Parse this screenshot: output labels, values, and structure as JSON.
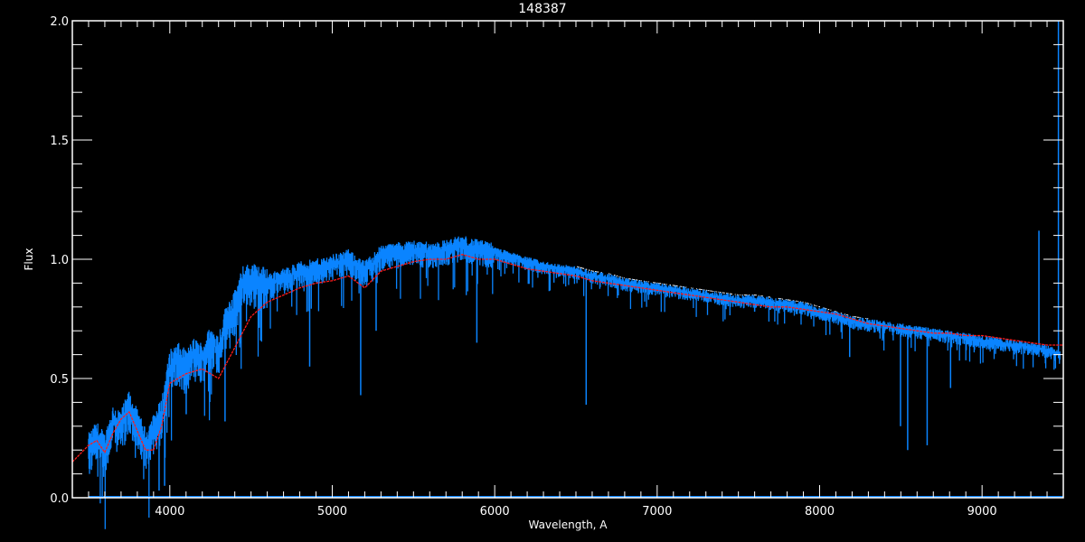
{
  "chart_data": {
    "type": "line",
    "title": "148387",
    "xlabel": "Wavelength, A",
    "ylabel": "Flux",
    "xlim": [
      3400,
      9500
    ],
    "ylim": [
      0.0,
      2.0
    ],
    "xticks": [
      4000,
      5000,
      6000,
      7000,
      8000,
      9000
    ],
    "xtick_labels": [
      "4000",
      "5000",
      "6000",
      "7000",
      "8000",
      "9000"
    ],
    "yticks": [
      0.0,
      0.5,
      1.0,
      1.5,
      2.0
    ],
    "ytick_labels": [
      "0.0",
      "0.5",
      "1.0",
      "1.5",
      "2.0"
    ],
    "grid": false,
    "background": "#000000",
    "series": [
      {
        "role": "observed",
        "color": "#0a84ff",
        "x": [
          3500,
          3550,
          3600,
          3650,
          3700,
          3750,
          3800,
          3850,
          3900,
          3950,
          4000,
          4050,
          4100,
          4150,
          4200,
          4250,
          4300,
          4350,
          4400,
          4450,
          4500,
          4550,
          4600,
          4700,
          4800,
          4900,
          5000,
          5100,
          5200,
          5300,
          5400,
          5500,
          5600,
          5700,
          5800,
          5900,
          6000,
          6100,
          6200,
          6300,
          6400,
          6500,
          6600,
          6700,
          6800,
          6900,
          7000,
          7100,
          7200,
          7300,
          7400,
          7500,
          7600,
          7700,
          7800,
          7900,
          8000,
          8100,
          8200,
          8300,
          8400,
          8500,
          8600,
          8700,
          8800,
          8900,
          9000,
          9100,
          9200,
          9300,
          9400,
          9480
        ],
        "y": [
          0.2,
          0.25,
          0.2,
          0.32,
          0.3,
          0.38,
          0.3,
          0.22,
          0.28,
          0.35,
          0.55,
          0.58,
          0.55,
          0.6,
          0.58,
          0.65,
          0.62,
          0.75,
          0.8,
          0.9,
          0.92,
          0.9,
          0.9,
          0.92,
          0.95,
          0.96,
          0.98,
          1.0,
          0.95,
          1.02,
          1.03,
          1.04,
          1.03,
          1.04,
          1.06,
          1.04,
          1.03,
          1.01,
          0.99,
          0.97,
          0.96,
          0.95,
          0.93,
          0.92,
          0.9,
          0.89,
          0.88,
          0.87,
          0.86,
          0.85,
          0.84,
          0.83,
          0.83,
          0.82,
          0.81,
          0.8,
          0.78,
          0.76,
          0.74,
          0.73,
          0.72,
          0.71,
          0.7,
          0.69,
          0.68,
          0.67,
          0.66,
          0.65,
          0.64,
          0.63,
          0.62,
          0.6
        ]
      },
      {
        "role": "model",
        "color": "#ff1a1a",
        "x": [
          3400,
          3500,
          3550,
          3600,
          3650,
          3700,
          3750,
          3800,
          3850,
          3900,
          3950,
          4000,
          4100,
          4200,
          4300,
          4400,
          4500,
          4600,
          4700,
          4800,
          4900,
          5000,
          5100,
          5200,
          5300,
          5400,
          5500,
          5600,
          5700,
          5800,
          5900,
          6000,
          6100,
          6200,
          6300,
          6400,
          6500,
          6600,
          6700,
          6800,
          6900,
          7000,
          7100,
          7200,
          7300,
          7400,
          7500,
          7600,
          7700,
          7800,
          7900,
          8000,
          8100,
          8200,
          8300,
          8400,
          8500,
          8600,
          8700,
          8800,
          8900,
          9000,
          9100,
          9200,
          9300,
          9400,
          9500
        ],
        "y": [
          0.15,
          0.22,
          0.24,
          0.19,
          0.27,
          0.33,
          0.36,
          0.28,
          0.2,
          0.2,
          0.3,
          0.48,
          0.52,
          0.54,
          0.5,
          0.63,
          0.76,
          0.82,
          0.85,
          0.88,
          0.9,
          0.91,
          0.93,
          0.88,
          0.95,
          0.97,
          0.99,
          1.0,
          1.0,
          1.02,
          1.0,
          1.0,
          0.98,
          0.96,
          0.95,
          0.94,
          0.93,
          0.91,
          0.9,
          0.89,
          0.88,
          0.87,
          0.86,
          0.85,
          0.84,
          0.83,
          0.82,
          0.81,
          0.8,
          0.8,
          0.79,
          0.78,
          0.77,
          0.75,
          0.73,
          0.72,
          0.71,
          0.7,
          0.69,
          0.69,
          0.68,
          0.68,
          0.67,
          0.66,
          0.65,
          0.64,
          0.64
        ]
      }
    ],
    "absorption_lines": [
      {
        "x": 3934,
        "y": 0.03
      },
      {
        "x": 3968,
        "y": 0.05
      },
      {
        "x": 4101,
        "y": 0.35
      },
      {
        "x": 4340,
        "y": 0.32
      },
      {
        "x": 4861,
        "y": 0.55
      },
      {
        "x": 5175,
        "y": 0.43
      },
      {
        "x": 5270,
        "y": 0.7
      },
      {
        "x": 5890,
        "y": 0.65
      },
      {
        "x": 6563,
        "y": 0.39
      },
      {
        "x": 7600,
        "y": 0.78
      },
      {
        "x": 8185,
        "y": 0.59
      },
      {
        "x": 8498,
        "y": 0.3
      },
      {
        "x": 8542,
        "y": 0.2
      },
      {
        "x": 8662,
        "y": 0.22
      },
      {
        "x": 8806,
        "y": 0.46
      }
    ],
    "emission_spikes": [
      {
        "x": 9350,
        "y": 1.12
      },
      {
        "x": 9470,
        "y": 2.0
      }
    ]
  }
}
